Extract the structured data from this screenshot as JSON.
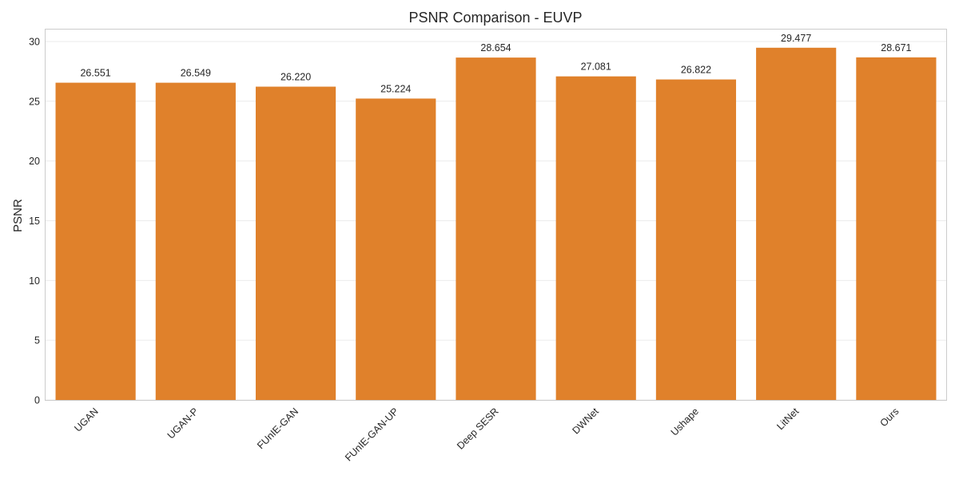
{
  "chart_data": {
    "type": "bar",
    "title": "PSNR Comparison - EUVP",
    "xlabel": "",
    "ylabel": "PSNR",
    "categories": [
      "UGAN",
      "UGAN-P",
      "FUnIE-GAN",
      "FUnIE-GAN-UP",
      "Deep SESR",
      "DWNet",
      "Ushape",
      "LitNet",
      "Ours"
    ],
    "values": [
      26.551,
      26.549,
      26.22,
      25.224,
      28.654,
      27.081,
      26.822,
      29.477,
      28.671
    ],
    "value_labels": [
      "26.551",
      "26.549",
      "26.220",
      "25.224",
      "28.654",
      "27.081",
      "26.822",
      "29.477",
      "28.671"
    ],
    "ylim": [
      0,
      31
    ],
    "yticks": [
      0,
      5,
      10,
      15,
      20,
      25,
      30
    ],
    "grid": true,
    "bar_color": "#e0812b"
  }
}
